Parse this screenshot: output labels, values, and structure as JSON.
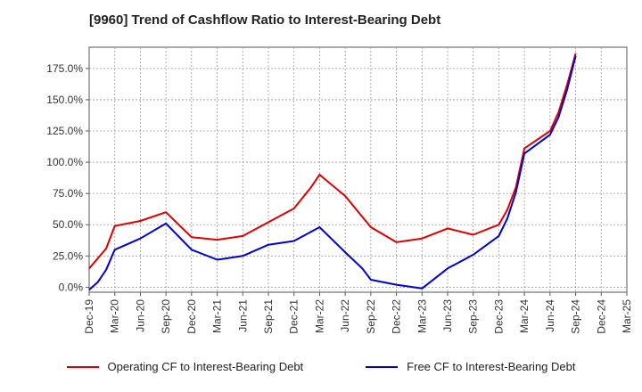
{
  "chart_data": {
    "type": "line",
    "title": "[9960]  Trend of Cashflow Ratio to Interest-Bearing Debt",
    "xlabel": "",
    "ylabel": "",
    "x_ticks": [
      "Dec-19",
      "Mar-20",
      "Jun-20",
      "Sep-20",
      "Dec-20",
      "Mar-21",
      "Jun-21",
      "Sep-21",
      "Dec-21",
      "Mar-22",
      "Jun-22",
      "Sep-22",
      "Dec-22",
      "Mar-23",
      "Jun-23",
      "Sep-23",
      "Dec-23",
      "Mar-24",
      "Jun-24",
      "Sep-24",
      "Dec-24",
      "Mar-25"
    ],
    "y_ticks": [
      "0.0%",
      "25.0%",
      "50.0%",
      "75.0%",
      "100.0%",
      "125.0%",
      "150.0%",
      "175.0%"
    ],
    "ylim": [
      -4,
      192
    ],
    "grid": true,
    "legend_position": "bottom",
    "series": [
      {
        "name": "Operating CF to Interest-Bearing Debt",
        "color": "#dd0000",
        "points": [
          [
            "Dec-19",
            15
          ],
          [
            "Feb-20",
            31
          ],
          [
            "Mar-20",
            49
          ],
          [
            "Jun-20",
            53
          ],
          [
            "Sep-20",
            60
          ],
          [
            "Dec-20",
            40
          ],
          [
            "Mar-21",
            38
          ],
          [
            "Jun-21",
            41
          ],
          [
            "Sep-21",
            52
          ],
          [
            "Dec-21",
            63
          ],
          [
            "Feb-22",
            80
          ],
          [
            "Mar-22",
            90
          ],
          [
            "Jun-22",
            73
          ],
          [
            "Sep-22",
            48
          ],
          [
            "Dec-22",
            36
          ],
          [
            "Mar-23",
            39
          ],
          [
            "Jun-23",
            47
          ],
          [
            "Sep-23",
            42
          ],
          [
            "Dec-23",
            50
          ],
          [
            "Jan-24",
            62
          ],
          [
            "Feb-24",
            80
          ],
          [
            "Mar-24",
            111
          ],
          [
            "Jun-24",
            125
          ],
          [
            "Jul-24",
            140
          ],
          [
            "Aug-24",
            162
          ],
          [
            "Sep-24",
            187
          ]
        ]
      },
      {
        "name": "Free CF to Interest-Bearing Debt",
        "color": "#0000cc",
        "points": [
          [
            "Dec-19",
            -2
          ],
          [
            "Jan-20",
            4
          ],
          [
            "Feb-20",
            14
          ],
          [
            "Mar-20",
            30
          ],
          [
            "Jun-20",
            39
          ],
          [
            "Sep-20",
            51
          ],
          [
            "Dec-20",
            30
          ],
          [
            "Mar-21",
            22
          ],
          [
            "Jun-21",
            25
          ],
          [
            "Sep-21",
            34
          ],
          [
            "Dec-21",
            37
          ],
          [
            "Mar-22",
            48
          ],
          [
            "Jun-22",
            28
          ],
          [
            "Aug-22",
            15
          ],
          [
            "Sep-22",
            6
          ],
          [
            "Dec-22",
            2
          ],
          [
            "Mar-23",
            -1
          ],
          [
            "Jun-23",
            15
          ],
          [
            "Sep-23",
            26
          ],
          [
            "Dec-23",
            41
          ],
          [
            "Jan-24",
            55
          ],
          [
            "Feb-24",
            76
          ],
          [
            "Mar-24",
            107
          ],
          [
            "Jun-24",
            122
          ],
          [
            "Jul-24",
            136
          ],
          [
            "Aug-24",
            158
          ],
          [
            "Sep-24",
            185
          ]
        ]
      }
    ]
  }
}
